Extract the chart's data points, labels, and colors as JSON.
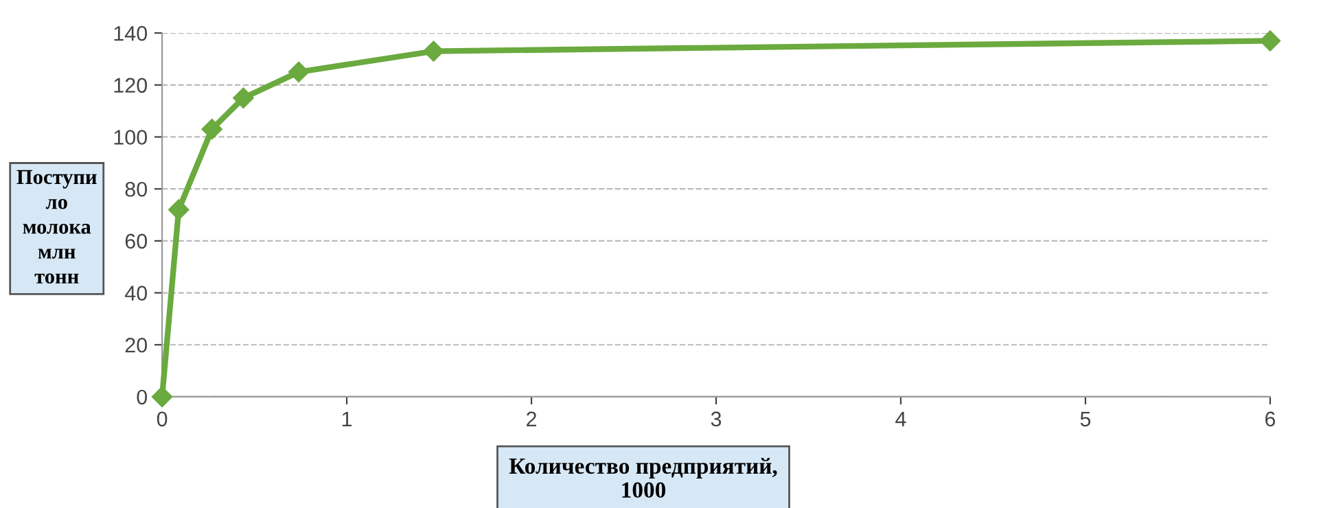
{
  "chart_data": {
    "type": "line",
    "xlabel": "Количество предприятий,\n1000",
    "ylabel": "Поступи\nло\nмолока\nмлн\nтонн",
    "x": [
      0,
      0.09,
      0.27,
      0.44,
      0.74,
      1.47,
      6
    ],
    "series": [
      {
        "color": "#6aaa3e",
        "values": [
          0,
          72,
          103,
          115,
          125,
          133,
          137
        ]
      }
    ],
    "xlim": [
      0,
      6
    ],
    "xticks": [
      0,
      1,
      2,
      3,
      4,
      5,
      6
    ],
    "ylim": [
      0,
      140
    ],
    "yticks": [
      0,
      20,
      40,
      60,
      80,
      100,
      120,
      140
    ],
    "grid": "y",
    "marker": "diamond",
    "line_style": "solid",
    "legend": false
  }
}
